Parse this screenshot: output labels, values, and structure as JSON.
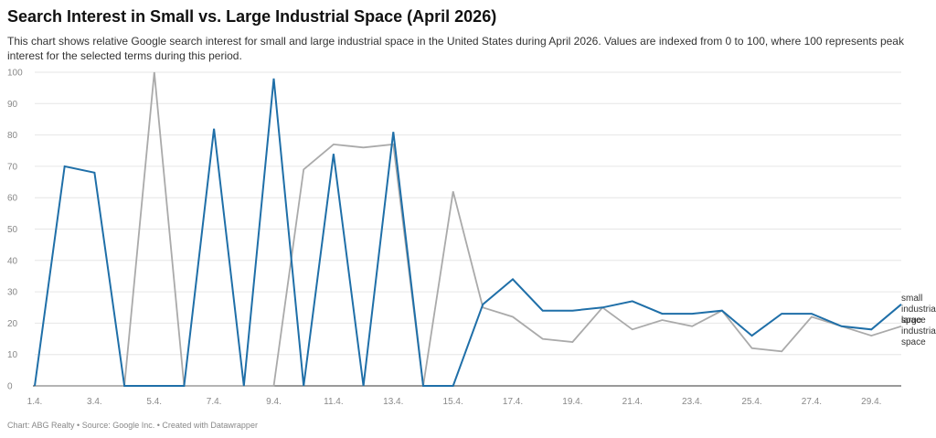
{
  "title": "Search Interest in Small vs. Large Industrial Space (April 2026)",
  "description": "This chart shows relative Google search interest for small and large industrial space in the United States during April 2026. Values are indexed from 0 to 100, where 100 represents peak interest for the selected terms during this period.",
  "footer": {
    "chart_by": "Chart: ABG Realty",
    "sep1": " • ",
    "source": "Source: Google Inc.",
    "sep2": " • ",
    "created_with": "Created with Datawrapper"
  },
  "colors": {
    "small": "#1f6fa8",
    "large": "#aaaaaa",
    "grid": "#e6e6e6",
    "baseline": "#333333"
  },
  "chart_data": {
    "type": "line",
    "title": "Search Interest in Small vs. Large Industrial Space (April 2026)",
    "xlabel": "",
    "ylabel": "",
    "ylim": [
      0,
      100
    ],
    "y_ticks": [
      0,
      10,
      20,
      30,
      40,
      50,
      60,
      70,
      80,
      90,
      100
    ],
    "grid": true,
    "legend": "line-end labels at right",
    "x": [
      "1.4.",
      "2.4.",
      "3.4.",
      "4.4.",
      "5.4.",
      "6.4.",
      "7.4.",
      "8.4.",
      "9.4.",
      "10.4.",
      "11.4.",
      "12.4.",
      "13.4.",
      "14.4.",
      "15.4.",
      "16.4.",
      "17.4.",
      "18.4.",
      "19.4.",
      "20.4.",
      "21.4.",
      "22.4.",
      "23.4.",
      "24.4.",
      "25.4.",
      "26.4.",
      "27.4.",
      "28.4.",
      "29.4.",
      "30.4."
    ],
    "x_tick_labels": [
      "1.4.",
      "3.4.",
      "5.4.",
      "7.4.",
      "9.4.",
      "11.4.",
      "13.4.",
      "15.4.",
      "17.4.",
      "19.4.",
      "21.4.",
      "23.4.",
      "25.4.",
      "27.4.",
      "29.4."
    ],
    "series": [
      {
        "name": "small industrial space",
        "label_lines": [
          "small",
          "industrial",
          "space"
        ],
        "values": [
          0,
          70,
          68,
          0,
          0,
          0,
          82,
          0,
          98,
          0,
          74,
          0,
          81,
          0,
          0,
          26,
          34,
          24,
          24,
          25,
          27,
          23,
          23,
          24,
          16,
          23,
          23,
          19,
          18,
          26
        ]
      },
      {
        "name": "large industrial space",
        "label_lines": [
          "large",
          "industrial",
          "space"
        ],
        "values": [
          0,
          0,
          0,
          0,
          100,
          0,
          0,
          0,
          0,
          69,
          77,
          76,
          77,
          0,
          62,
          25,
          22,
          15,
          14,
          25,
          18,
          21,
          19,
          24,
          12,
          11,
          22,
          19,
          16,
          19
        ]
      }
    ]
  }
}
